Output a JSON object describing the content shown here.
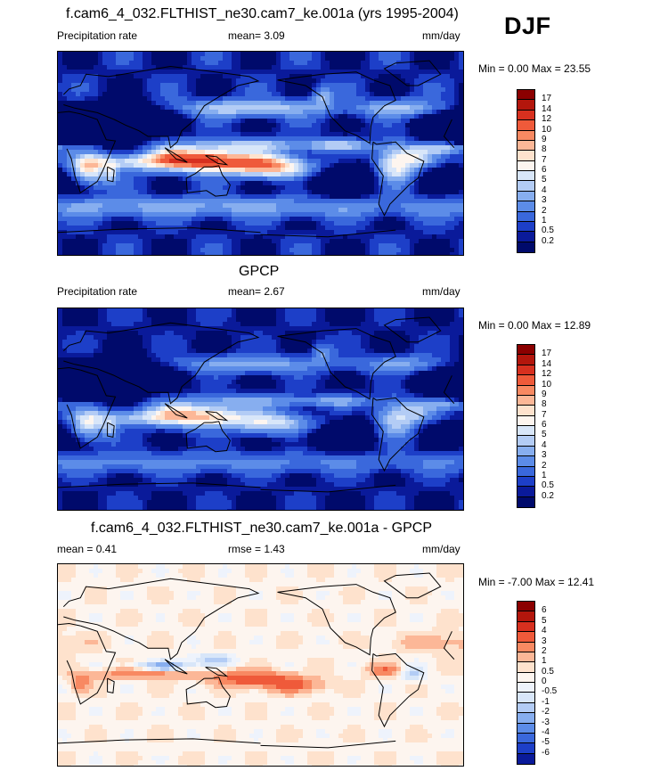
{
  "header": {
    "season": "DJF"
  },
  "panels": [
    {
      "id": "model",
      "title": "f.cam6_4_032.FLTHIST_ne30.cam7_ke.001a (yrs 1995-2004)",
      "left_label": "Precipitation rate",
      "stat1": "mean=   3.09",
      "stat2": "",
      "units": "mm/day",
      "minmax": "Min =   0.00 Max =  23.55",
      "field": "precip",
      "colorbar": {
        "labels": [
          "17",
          "14",
          "12",
          "10",
          "9",
          "8",
          "7",
          "6",
          "5",
          "4",
          "3",
          "2",
          "1",
          "0.5",
          "0.2"
        ],
        "colors": [
          "#8b0000",
          "#b3160c",
          "#d7301f",
          "#ef5a3a",
          "#f88962",
          "#fcb797",
          "#fee2cd",
          "#fdf5ef",
          "#d8e6f9",
          "#b3ccf5",
          "#87aeef",
          "#5c8ce8",
          "#3a68dc",
          "#1d3fc8",
          "#0a1a9a",
          "#000a6b"
        ]
      }
    },
    {
      "id": "obs",
      "title": "GPCP",
      "left_label": "Precipitation rate",
      "stat1": "mean=   2.67",
      "stat2": "",
      "units": "mm/day",
      "minmax": "Min =   0.00 Max =  12.89",
      "field": "precip",
      "colorbar": {
        "labels": [
          "17",
          "14",
          "12",
          "10",
          "9",
          "8",
          "7",
          "6",
          "5",
          "4",
          "3",
          "2",
          "1",
          "0.5",
          "0.2"
        ],
        "colors": [
          "#8b0000",
          "#b3160c",
          "#d7301f",
          "#ef5a3a",
          "#f88962",
          "#fcb797",
          "#fee2cd",
          "#fdf5ef",
          "#d8e6f9",
          "#b3ccf5",
          "#87aeef",
          "#5c8ce8",
          "#3a68dc",
          "#1d3fc8",
          "#0a1a9a",
          "#000a6b"
        ]
      }
    },
    {
      "id": "diff",
      "title": "f.cam6_4_032.FLTHIST_ne30.cam7_ke.001a - GPCP",
      "left_label": "mean =   0.41",
      "stat1": "rmse =   1.43",
      "stat2": "",
      "units": "mm/day",
      "minmax": "Min =  -7.00 Max =  12.41",
      "field": "diff",
      "colorbar": {
        "labels": [
          "6",
          "5",
          "4",
          "3",
          "2",
          "1",
          "0.5",
          "0",
          "-0.5",
          "-1",
          "-2",
          "-3",
          "-4",
          "-5",
          "-6"
        ],
        "colors": [
          "#8b0000",
          "#b3160c",
          "#d7301f",
          "#ef5a3a",
          "#f88962",
          "#fcb797",
          "#fee2cd",
          "#fdf5ef",
          "#eef3fc",
          "#d8e6f9",
          "#b3ccf5",
          "#87aeef",
          "#5c8ce8",
          "#3a68dc",
          "#1d3fc8",
          "#0a1a9a"
        ]
      }
    }
  ]
}
